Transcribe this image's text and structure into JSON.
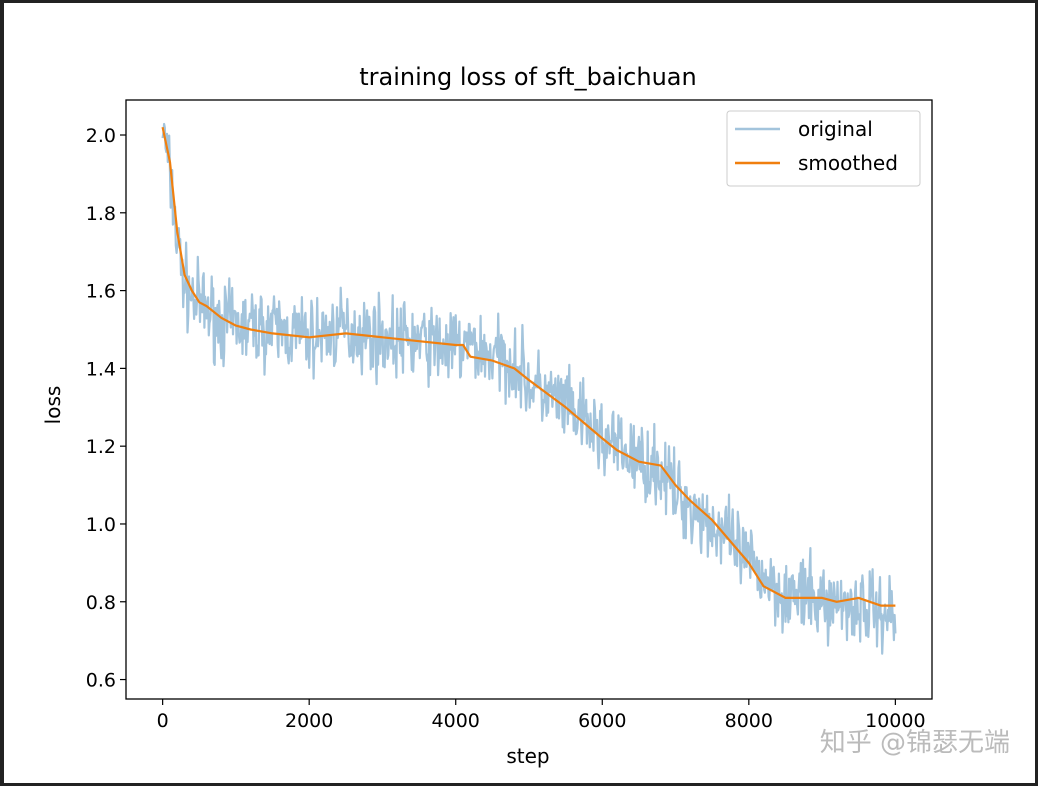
{
  "chart_data": {
    "type": "line",
    "title": "training loss of sft_baichuan",
    "xlabel": "step",
    "ylabel": "loss",
    "xlim": [
      -500,
      10500
    ],
    "ylim": [
      0.55,
      2.09
    ],
    "xticks": [
      0,
      2000,
      4000,
      6000,
      8000,
      10000
    ],
    "yticks": [
      0.6,
      0.8,
      1.0,
      1.2,
      1.4,
      1.6,
      1.8,
      2.0
    ],
    "xtick_labels": [
      "0",
      "2000",
      "4000",
      "6000",
      "8000",
      "10000"
    ],
    "ytick_labels": [
      "0.6",
      "0.8",
      "1.0",
      "1.2",
      "1.4",
      "1.6",
      "1.8",
      "2.0"
    ],
    "grid": false,
    "legend": {
      "position": "top-right",
      "entries": [
        "original",
        "smoothed"
      ]
    },
    "series": [
      {
        "name": "original",
        "color": "#a3c4dc",
        "noise": 0.06,
        "x": [
          0,
          100,
          200,
          300,
          400,
          600,
          800,
          1000,
          1500,
          2000,
          2500,
          3000,
          3500,
          4000,
          4200,
          4500,
          4800,
          5000,
          5500,
          6000,
          6500,
          6800,
          7000,
          7500,
          8000,
          8500,
          9000,
          9500,
          10000
        ],
        "y": [
          2.02,
          1.9,
          1.72,
          1.62,
          1.58,
          1.55,
          1.52,
          1.51,
          1.5,
          1.48,
          1.5,
          1.48,
          1.47,
          1.45,
          1.46,
          1.43,
          1.42,
          1.36,
          1.3,
          1.22,
          1.16,
          1.14,
          1.08,
          1.0,
          0.9,
          0.82,
          0.8,
          0.79,
          0.77
        ]
      },
      {
        "name": "smoothed",
        "color": "#f07f0e",
        "x": [
          0,
          100,
          200,
          300,
          400,
          500,
          600,
          800,
          1000,
          1200,
          1500,
          2000,
          2500,
          3000,
          3500,
          4000,
          4100,
          4200,
          4500,
          4800,
          5000,
          5500,
          6000,
          6200,
          6500,
          6800,
          7000,
          7200,
          7500,
          8000,
          8200,
          8500,
          9000,
          9200,
          9500,
          9800,
          10000
        ],
        "y": [
          2.02,
          1.93,
          1.75,
          1.64,
          1.6,
          1.57,
          1.56,
          1.53,
          1.51,
          1.5,
          1.49,
          1.48,
          1.49,
          1.48,
          1.47,
          1.46,
          1.46,
          1.43,
          1.42,
          1.4,
          1.37,
          1.3,
          1.22,
          1.19,
          1.16,
          1.15,
          1.1,
          1.06,
          1.01,
          0.9,
          0.84,
          0.81,
          0.81,
          0.8,
          0.81,
          0.79,
          0.79
        ]
      }
    ]
  },
  "watermark": "知乎 @锦瑟无端"
}
